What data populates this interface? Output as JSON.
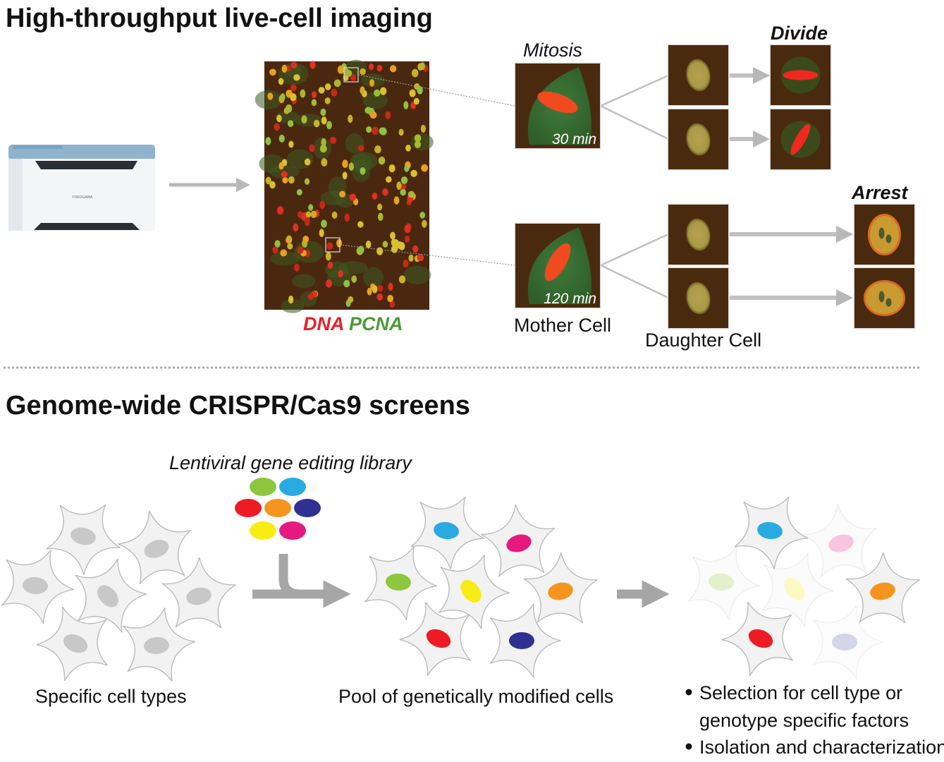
{
  "top_section": {
    "title": "High-throughput live-cell imaging",
    "instrument_logo_text": "YOKOGAWA",
    "stain_labels": {
      "dna": "DNA",
      "pcna": "PCNA"
    },
    "mitosis_label": "Mitosis",
    "divide_label": "Divide",
    "arrest_label": "Arrest",
    "time_30": "30 min",
    "time_120": "120 min",
    "mother_cell_label": "Mother Cell",
    "daughter_cell_label": "Daughter Cell",
    "colors": {
      "dna": "#e8202a",
      "pcna": "#4f9a3a",
      "divide": "#b0b0b0",
      "arrest": "#ee1c24"
    }
  },
  "bottom_section": {
    "title": "Genome-wide CRISPR/Cas9 screens",
    "library_label": "Lentiviral gene editing library",
    "library_colors": [
      "#8dc63f",
      "#29abe2",
      "#ed1c24",
      "#f7941d",
      "#2e3192",
      "#f7ec13",
      "#e6197f"
    ],
    "step1_label": "Specific cell types",
    "step2_label": "Pool of genetically modified cells",
    "bullets": [
      "Selection for cell type or genotype specific factors",
      "Isolation and characterization"
    ],
    "bullet_lines": [
      "Selection for cell type or",
      "genotype specific factors",
      "Isolation and characterization"
    ]
  }
}
